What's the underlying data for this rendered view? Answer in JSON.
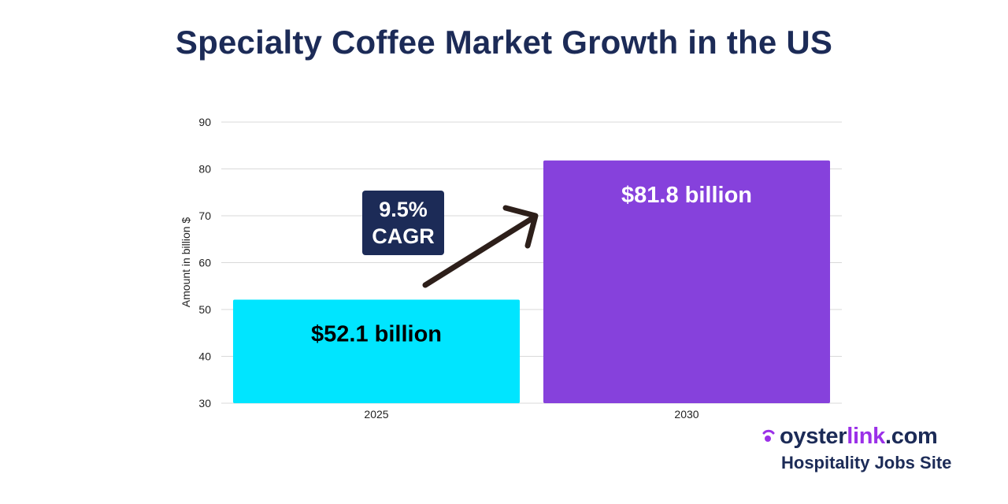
{
  "title": "Specialty Coffee Market Growth in the US",
  "chart_data": {
    "type": "bar",
    "categories": [
      "2025",
      "2030"
    ],
    "values": [
      52.1,
      81.8
    ],
    "data_labels": [
      "$52.1 billion",
      "$81.8 billion"
    ],
    "bar_colors": [
      "#00e5ff",
      "#8641dc"
    ],
    "data_label_colors": [
      "#000000",
      "#ffffff"
    ],
    "title": "Specialty Coffee Market Growth in the US",
    "xlabel": "",
    "ylabel": "Amount in billion $",
    "ylim": [
      30,
      90
    ],
    "yticks": [
      30,
      40,
      50,
      60,
      70,
      80,
      90
    ],
    "grid": true,
    "annotation": {
      "line1": "9.5%",
      "line2": "CAGR"
    }
  },
  "brand": {
    "name_prefix": "oyster",
    "name_accent": "link",
    "name_suffix": ".com",
    "tagline": "Hospitality Jobs Site",
    "accent_color": "#9b30e8",
    "icon": "wave-signal-icon"
  }
}
